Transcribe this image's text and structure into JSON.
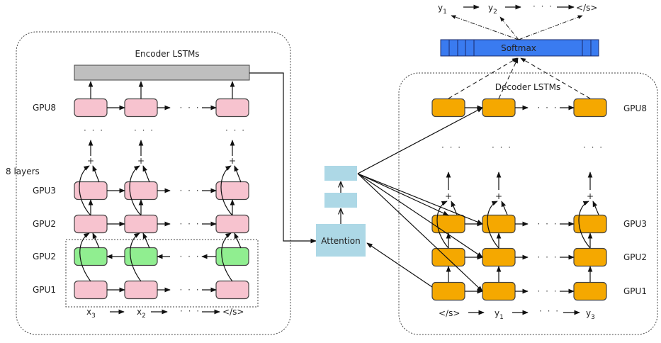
{
  "encoder": {
    "title": "Encoder LSTMs",
    "layers_label": "8 layers",
    "row_labels": [
      "GPU8",
      "GPU3",
      "GPU2",
      "GPU2",
      "GPU1"
    ],
    "inputs": [
      {
        "base": "x",
        "sub": "3"
      },
      {
        "base": "x",
        "sub": "2"
      },
      {
        "base": "</s>",
        "sub": ""
      }
    ],
    "colors": {
      "forward": "#f7c3cf",
      "backward": "#90ee90",
      "output": "#bfbfbf"
    }
  },
  "attention": {
    "label": "Attention",
    "color": "#add8e6"
  },
  "softmax": {
    "label": "Softmax",
    "color": "#3a7bf0"
  },
  "outputs": [
    {
      "base": "y",
      "sub": "1"
    },
    {
      "base": "y",
      "sub": "2"
    },
    {
      "base": "</s>",
      "sub": ""
    }
  ],
  "decoder": {
    "title": "Decoder LSTMs",
    "row_labels": [
      "GPU8",
      "GPU3",
      "GPU2",
      "GPU1"
    ],
    "inputs": [
      {
        "base": "</s>",
        "sub": ""
      },
      {
        "base": "y",
        "sub": "1"
      },
      {
        "base": "y",
        "sub": "3"
      }
    ],
    "color": "#f5a800"
  },
  "symbols": {
    "ellipsis": "· · ·",
    "plus": "+"
  }
}
